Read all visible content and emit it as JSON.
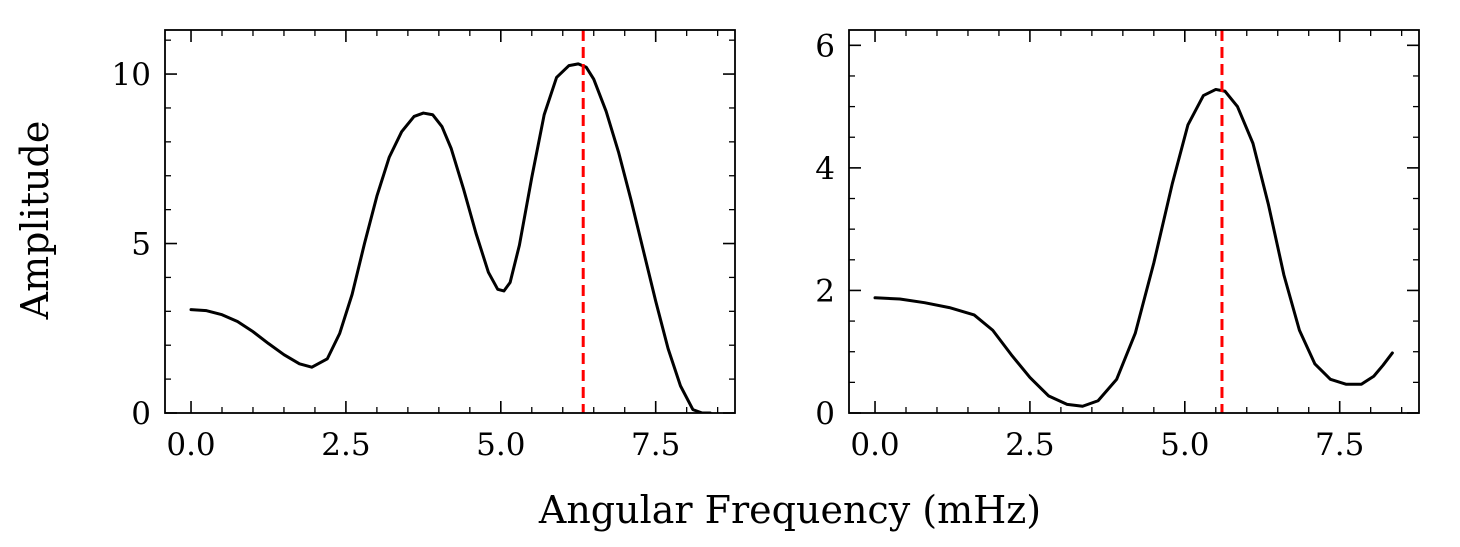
{
  "figure": {
    "xlabel": "Angular Frequency (mHz)",
    "ylabel": "Amplitude"
  },
  "chart_data": [
    {
      "type": "line",
      "title": "",
      "xlabel": "Angular Frequency (mHz)",
      "ylabel": "Amplitude",
      "xlim": [
        -0.42,
        8.78
      ],
      "ylim": [
        0,
        11.3
      ],
      "xticks": [
        0.0,
        2.5,
        5.0,
        7.5
      ],
      "xtick_labels": [
        "0.0",
        "2.5",
        "5.0",
        "7.5"
      ],
      "yticks": [
        0,
        5,
        10
      ],
      "ytick_labels": [
        "0",
        "5",
        "10"
      ],
      "grid": false,
      "series": [
        {
          "color": "#000000",
          "x": [
            0.0,
            0.25,
            0.5,
            0.75,
            1.0,
            1.25,
            1.5,
            1.75,
            1.95,
            2.2,
            2.4,
            2.6,
            2.8,
            3.0,
            3.2,
            3.4,
            3.6,
            3.75,
            3.9,
            4.05,
            4.2,
            4.4,
            4.6,
            4.8,
            4.95,
            5.05,
            5.15,
            5.3,
            5.5,
            5.7,
            5.9,
            6.1,
            6.25,
            6.38,
            6.5,
            6.7,
            6.9,
            7.1,
            7.3,
            7.5,
            7.7,
            7.9,
            8.1,
            8.25,
            8.38
          ],
          "y": [
            3.05,
            3.02,
            2.9,
            2.7,
            2.4,
            2.05,
            1.72,
            1.45,
            1.35,
            1.6,
            2.35,
            3.5,
            5.0,
            6.4,
            7.55,
            8.3,
            8.75,
            8.85,
            8.8,
            8.45,
            7.8,
            6.6,
            5.3,
            4.15,
            3.65,
            3.6,
            3.85,
            4.95,
            6.95,
            8.8,
            9.9,
            10.25,
            10.3,
            10.2,
            9.85,
            8.9,
            7.7,
            6.3,
            4.8,
            3.3,
            1.9,
            0.8,
            0.1,
            0.0,
            0.0
          ]
        }
      ],
      "vlines": [
        {
          "x": 6.33,
          "color": "#ff0000",
          "style": "dashed"
        }
      ]
    },
    {
      "type": "line",
      "title": "",
      "xlabel": "Angular Frequency (mHz)",
      "ylabel": "",
      "xlim": [
        -0.42,
        8.78
      ],
      "ylim": [
        0,
        6.25
      ],
      "xticks": [
        0.0,
        2.5,
        5.0,
        7.5
      ],
      "xtick_labels": [
        "0.0",
        "2.5",
        "5.0",
        "7.5"
      ],
      "yticks": [
        0,
        2,
        4,
        6
      ],
      "ytick_labels": [
        "0",
        "2",
        "4",
        "6"
      ],
      "grid": false,
      "series": [
        {
          "color": "#000000",
          "x": [
            0.0,
            0.4,
            0.8,
            1.2,
            1.6,
            1.9,
            2.2,
            2.5,
            2.8,
            3.1,
            3.35,
            3.6,
            3.9,
            4.2,
            4.5,
            4.8,
            5.05,
            5.3,
            5.5,
            5.65,
            5.85,
            6.1,
            6.35,
            6.6,
            6.85,
            7.1,
            7.35,
            7.6,
            7.85,
            8.05,
            8.2,
            8.35
          ],
          "y": [
            1.88,
            1.86,
            1.8,
            1.72,
            1.6,
            1.35,
            0.95,
            0.58,
            0.28,
            0.14,
            0.11,
            0.2,
            0.55,
            1.3,
            2.45,
            3.75,
            4.7,
            5.18,
            5.28,
            5.25,
            5.0,
            4.4,
            3.4,
            2.25,
            1.35,
            0.8,
            0.55,
            0.47,
            0.47,
            0.6,
            0.78,
            0.98
          ]
        }
      ],
      "vlines": [
        {
          "x": 5.6,
          "color": "#ff0000",
          "style": "dashed"
        }
      ]
    }
  ]
}
